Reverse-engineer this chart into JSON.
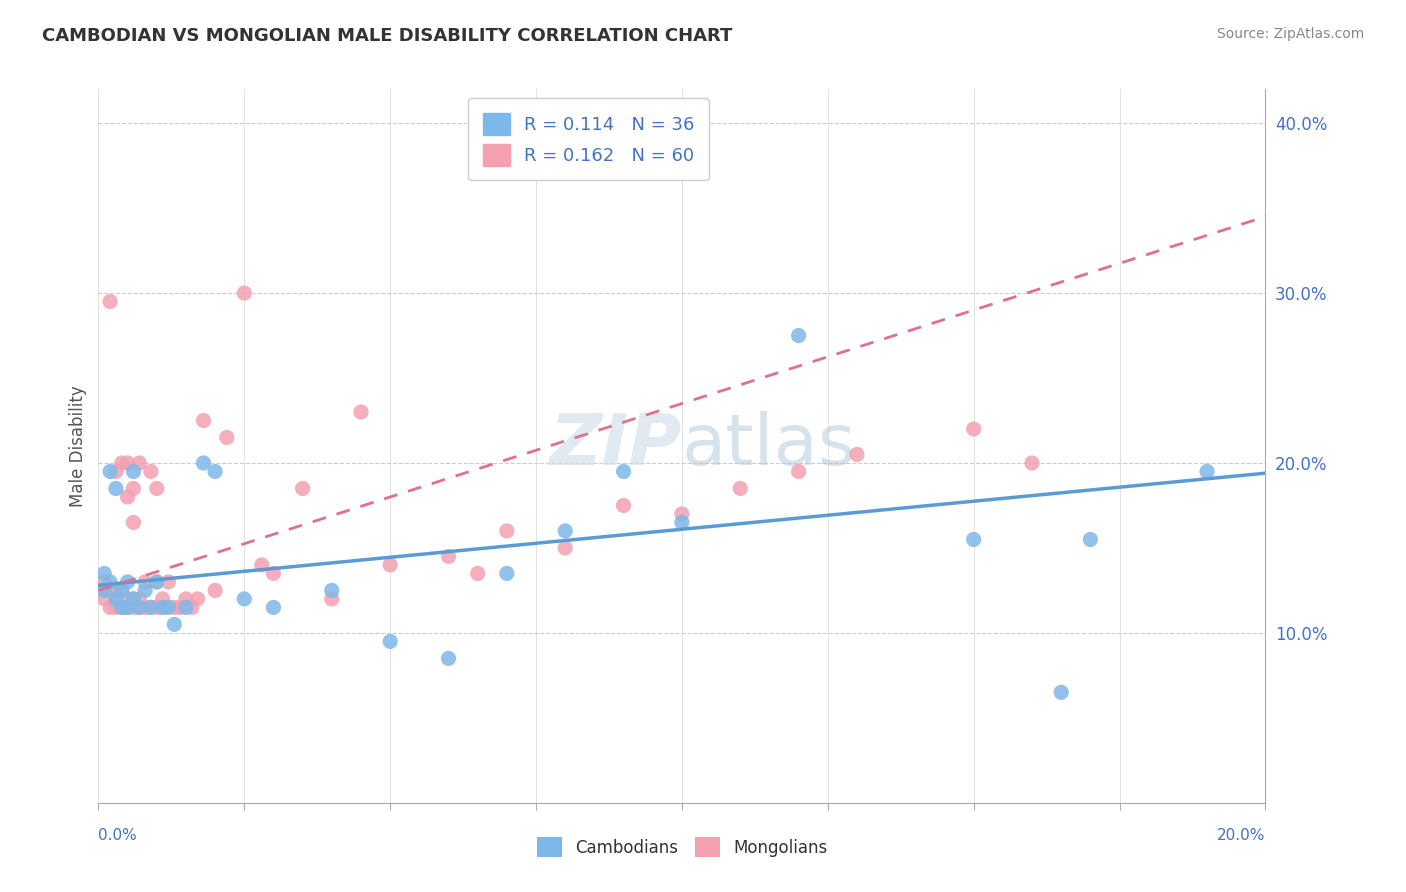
{
  "title": "CAMBODIAN VS MONGOLIAN MALE DISABILITY CORRELATION CHART",
  "source": "Source: ZipAtlas.com",
  "ylabel": "Male Disability",
  "xlim": [
    0.0,
    0.2
  ],
  "ylim": [
    0.0,
    0.42
  ],
  "yticks": [
    0.1,
    0.2,
    0.3,
    0.4
  ],
  "ytick_labels": [
    "10.0%",
    "20.0%",
    "30.0%",
    "40.0%"
  ],
  "cambodian_color": "#7EB8E8",
  "mongolian_color": "#F4A0B0",
  "cambodian_line_color": "#5B9BD5",
  "mongolian_line_color": "#E07090",
  "cambodian_R": 0.114,
  "cambodian_N": 36,
  "mongolian_R": 0.162,
  "mongolian_N": 60,
  "background_color": "#ffffff",
  "grid_color": "#cccccc",
  "legend_text_color": "#4472C4",
  "cambodian_x": [
    0.001,
    0.001,
    0.002,
    0.002,
    0.003,
    0.003,
    0.004,
    0.004,
    0.005,
    0.005,
    0.006,
    0.006,
    0.007,
    0.008,
    0.009,
    0.01,
    0.011,
    0.012,
    0.013,
    0.015,
    0.018,
    0.02,
    0.025,
    0.03,
    0.04,
    0.05,
    0.06,
    0.07,
    0.08,
    0.09,
    0.1,
    0.12,
    0.15,
    0.17,
    0.19,
    0.165
  ],
  "cambodian_y": [
    0.135,
    0.125,
    0.13,
    0.195,
    0.12,
    0.185,
    0.125,
    0.115,
    0.13,
    0.115,
    0.195,
    0.12,
    0.115,
    0.125,
    0.115,
    0.13,
    0.115,
    0.115,
    0.105,
    0.115,
    0.2,
    0.195,
    0.12,
    0.115,
    0.125,
    0.095,
    0.085,
    0.135,
    0.16,
    0.195,
    0.165,
    0.275,
    0.155,
    0.155,
    0.195,
    0.065
  ],
  "mongolian_x": [
    0.001,
    0.001,
    0.001,
    0.002,
    0.002,
    0.002,
    0.003,
    0.003,
    0.003,
    0.003,
    0.004,
    0.004,
    0.004,
    0.005,
    0.005,
    0.005,
    0.005,
    0.006,
    0.006,
    0.006,
    0.006,
    0.007,
    0.007,
    0.007,
    0.008,
    0.008,
    0.009,
    0.009,
    0.01,
    0.01,
    0.01,
    0.011,
    0.011,
    0.012,
    0.013,
    0.014,
    0.015,
    0.016,
    0.017,
    0.018,
    0.02,
    0.022,
    0.025,
    0.028,
    0.03,
    0.035,
    0.04,
    0.045,
    0.05,
    0.06,
    0.065,
    0.07,
    0.08,
    0.09,
    0.1,
    0.11,
    0.12,
    0.13,
    0.15,
    0.16
  ],
  "mongolian_y": [
    0.125,
    0.12,
    0.13,
    0.115,
    0.125,
    0.295,
    0.115,
    0.125,
    0.195,
    0.12,
    0.115,
    0.125,
    0.2,
    0.115,
    0.12,
    0.2,
    0.18,
    0.115,
    0.12,
    0.185,
    0.165,
    0.115,
    0.12,
    0.2,
    0.115,
    0.13,
    0.115,
    0.195,
    0.115,
    0.13,
    0.185,
    0.115,
    0.12,
    0.13,
    0.115,
    0.115,
    0.12,
    0.115,
    0.12,
    0.225,
    0.125,
    0.215,
    0.3,
    0.14,
    0.135,
    0.185,
    0.12,
    0.23,
    0.14,
    0.145,
    0.135,
    0.16,
    0.15,
    0.175,
    0.17,
    0.185,
    0.195,
    0.205,
    0.22,
    0.2
  ],
  "trendline_cambodian_intercept": 0.128,
  "trendline_cambodian_slope": 0.33,
  "trendline_mongolian_intercept": 0.125,
  "trendline_mongolian_slope": 1.1
}
